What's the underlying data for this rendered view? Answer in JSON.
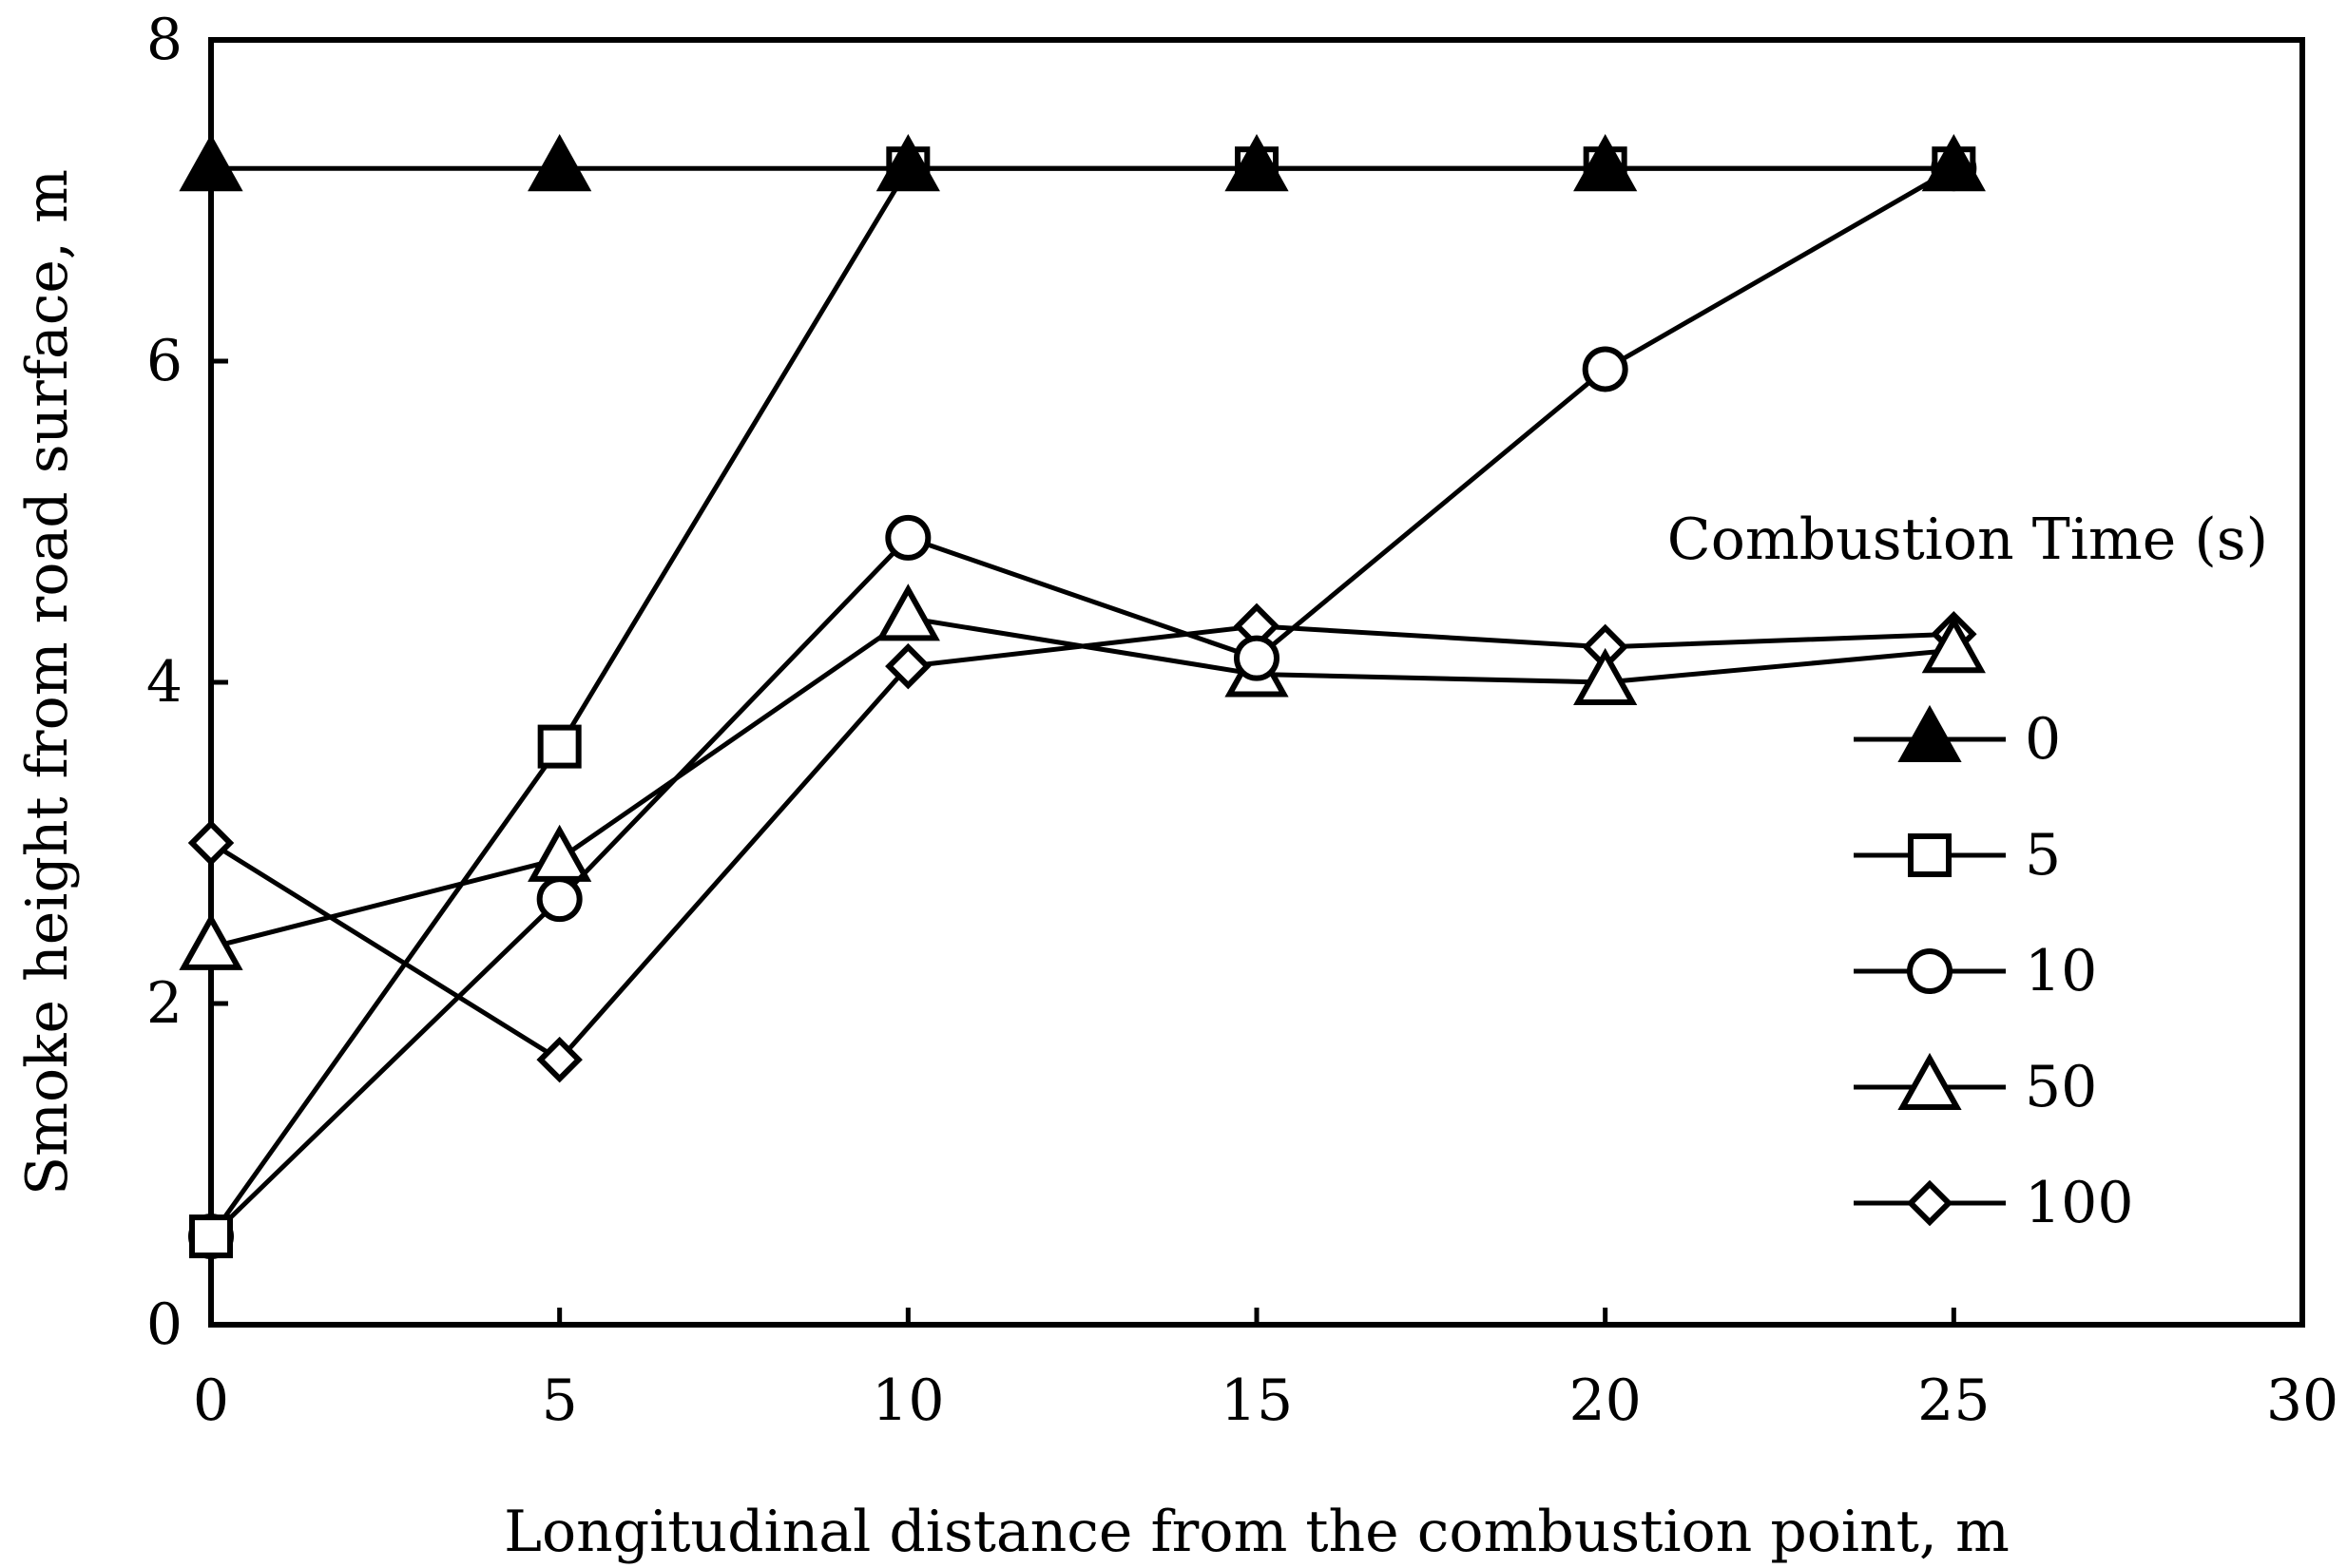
{
  "chart_data": {
    "type": "line",
    "title": "",
    "xlabel": "Longitudinal distance from the combustion point, m",
    "ylabel": "Smoke height from road surface, m",
    "xlim": [
      0,
      30
    ],
    "ylim": [
      0,
      8
    ],
    "xticks": [
      0,
      5,
      10,
      15,
      20,
      25,
      30
    ],
    "yticks": [
      0,
      2,
      4,
      6,
      8
    ],
    "xtick_labels": [
      "0",
      "5",
      "10",
      "15",
      "20",
      "25",
      "30"
    ],
    "ytick_labels": [
      "0",
      "2",
      "4",
      "6",
      "8"
    ],
    "grid": false,
    "x": [
      0,
      5,
      10,
      15,
      20,
      25
    ],
    "legend": {
      "title": "Combustion Time (s)",
      "position": "right"
    },
    "series": [
      {
        "name": "0",
        "marker": "triangle-filled",
        "values": [
          7.2,
          7.2,
          7.2,
          7.2,
          7.2,
          7.2
        ]
      },
      {
        "name": "5",
        "marker": "square-open",
        "values": [
          0.55,
          3.6,
          7.2,
          7.2,
          7.2,
          7.2
        ]
      },
      {
        "name": "10",
        "marker": "circle-open",
        "values": [
          0.55,
          2.65,
          4.9,
          4.15,
          5.95,
          7.2
        ]
      },
      {
        "name": "50",
        "marker": "triangle-open",
        "values": [
          2.35,
          2.9,
          4.4,
          4.05,
          4.0,
          4.2
        ]
      },
      {
        "name": "100",
        "marker": "diamond-open",
        "values": [
          3.0,
          1.65,
          4.1,
          4.35,
          4.22,
          4.3
        ]
      }
    ]
  }
}
